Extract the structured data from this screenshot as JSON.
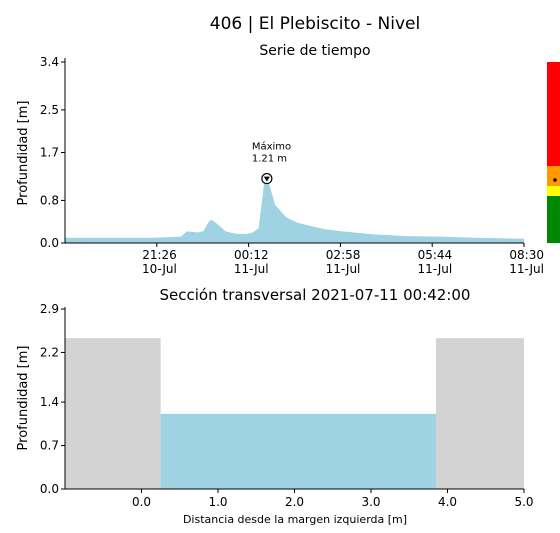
{
  "colors": {
    "water": "#9fd3e3",
    "ground": "#d3d3d3",
    "alert_red": "#ff0000",
    "alert_orange": "#ff9900",
    "alert_yellow": "#ffff00",
    "alert_green": "#008800",
    "axis": "#000000"
  },
  "chart_data": [
    {
      "id": "time_series",
      "type": "area",
      "title": "406 | El Plebiscito - Nivel",
      "subtitle": "Serie de tiempo",
      "xlabel": "",
      "ylabel": "Profundidad [m]",
      "ylim": [
        0,
        3.4
      ],
      "yticks": [
        "3.4",
        "2.5",
        "1.7",
        "0.8",
        "0.0"
      ],
      "ytick_values": [
        3.4,
        2.5,
        1.7,
        0.8,
        0.0
      ],
      "xlim": [
        "2021-07-10 18:40",
        "2021-07-11 08:30"
      ],
      "xticks": [
        {
          "time": "21:26",
          "date": "10-Jul",
          "at": "2021-07-10 21:26"
        },
        {
          "time": "00:12",
          "date": "11-Jul",
          "at": "2021-07-11 00:12"
        },
        {
          "time": "02:58",
          "date": "11-Jul",
          "at": "2021-07-11 02:58"
        },
        {
          "time": "05:44",
          "date": "11-Jul",
          "at": "2021-07-11 05:44"
        },
        {
          "time": "08:30",
          "date": "11-Jul",
          "at": "2021-07-11 08:30"
        }
      ],
      "series": [
        {
          "x": [
            "2021-07-10 18:40",
            "2021-07-10 20:00",
            "2021-07-10 21:20",
            "2021-07-10 22:10",
            "2021-07-10 22:20",
            "2021-07-10 22:40",
            "2021-07-10 22:50",
            "2021-07-10 23:00",
            "2021-07-10 23:05",
            "2021-07-10 23:15",
            "2021-07-10 23:30",
            "2021-07-10 23:50",
            "2021-07-11 00:10",
            "2021-07-11 00:20",
            "2021-07-11 00:30",
            "2021-07-11 00:40",
            "2021-07-11 00:45",
            "2021-07-11 00:50",
            "2021-07-11 01:00",
            "2021-07-11 01:20",
            "2021-07-11 01:40",
            "2021-07-11 02:00",
            "2021-07-11 02:30",
            "2021-07-11 03:00",
            "2021-07-11 04:00",
            "2021-07-11 05:00",
            "2021-07-11 06:00",
            "2021-07-11 07:00",
            "2021-07-11 08:30"
          ],
          "values": [
            0.1,
            0.1,
            0.1,
            0.12,
            0.22,
            0.2,
            0.22,
            0.4,
            0.44,
            0.36,
            0.22,
            0.17,
            0.17,
            0.2,
            0.28,
            1.12,
            1.21,
            1.08,
            0.72,
            0.48,
            0.38,
            0.33,
            0.26,
            0.22,
            0.16,
            0.13,
            0.12,
            0.1,
            0.08
          ]
        }
      ],
      "annotation": {
        "label": "Máximo",
        "value_text": "1.21 m",
        "x": "2021-07-11 00:45",
        "y": 1.21
      }
    },
    {
      "id": "cross_section",
      "type": "area",
      "title": "Sección transversal 2021-07-11 00:42:00",
      "xlabel": "Distancia desde la margen izquierda [m]",
      "ylabel": "Profundidad [m]",
      "xlim": [
        -1.0,
        5.0
      ],
      "ylim": [
        0,
        2.9
      ],
      "xticks": [
        "0.0",
        "1.0",
        "2.0",
        "3.0",
        "4.0",
        "5.0"
      ],
      "xtick_values": [
        0,
        1,
        2,
        3,
        4,
        5
      ],
      "yticks": [
        "2.9",
        "2.2",
        "1.4",
        "0.7",
        "0.0"
      ],
      "ytick_values": [
        2.9,
        2.2,
        1.4,
        0.7,
        0.0
      ],
      "left_bank": {
        "x": [
          -1.0,
          0.25
        ],
        "height": 2.43
      },
      "right_bank": {
        "x": [
          3.85,
          5.0
        ],
        "height": 2.43
      },
      "water": {
        "x": [
          0.25,
          3.85
        ],
        "level": 1.21
      }
    }
  ]
}
